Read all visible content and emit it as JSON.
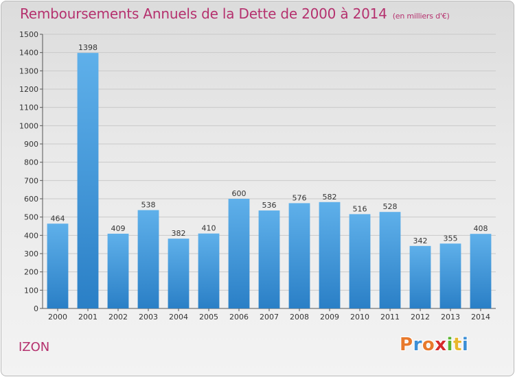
{
  "header": {
    "title": "Remboursements Annuels de la Dette de 2000 à 2014",
    "unit": "(en milliers d'€)"
  },
  "footer": {
    "place": "IZON",
    "logo_text": "Proxiti"
  },
  "colors": {
    "title": "#b5316e",
    "bar_top": "#5fb0ea",
    "bar_bottom": "#2a7fc6",
    "logo": [
      "#e8792c",
      "#3c8fd6",
      "#e8792c",
      "#d62c2c",
      "#5ab532",
      "#e8b62c",
      "#3c8fd6"
    ]
  },
  "chart_data": {
    "type": "bar",
    "categories": [
      "2000",
      "2001",
      "2002",
      "2003",
      "2004",
      "2005",
      "2006",
      "2007",
      "2008",
      "2009",
      "2010",
      "2011",
      "2012",
      "2013",
      "2014"
    ],
    "values": [
      464,
      1398,
      409,
      538,
      382,
      410,
      600,
      536,
      576,
      582,
      516,
      528,
      342,
      355,
      408
    ],
    "title": "Remboursements Annuels de la Dette de 2000 à 2014",
    "ylim": [
      0,
      1500
    ],
    "yticks": [
      0,
      100,
      200,
      300,
      400,
      500,
      600,
      700,
      800,
      900,
      1000,
      1100,
      1200,
      1300,
      1400,
      1500
    ],
    "grid": true,
    "data_labels": true
  }
}
